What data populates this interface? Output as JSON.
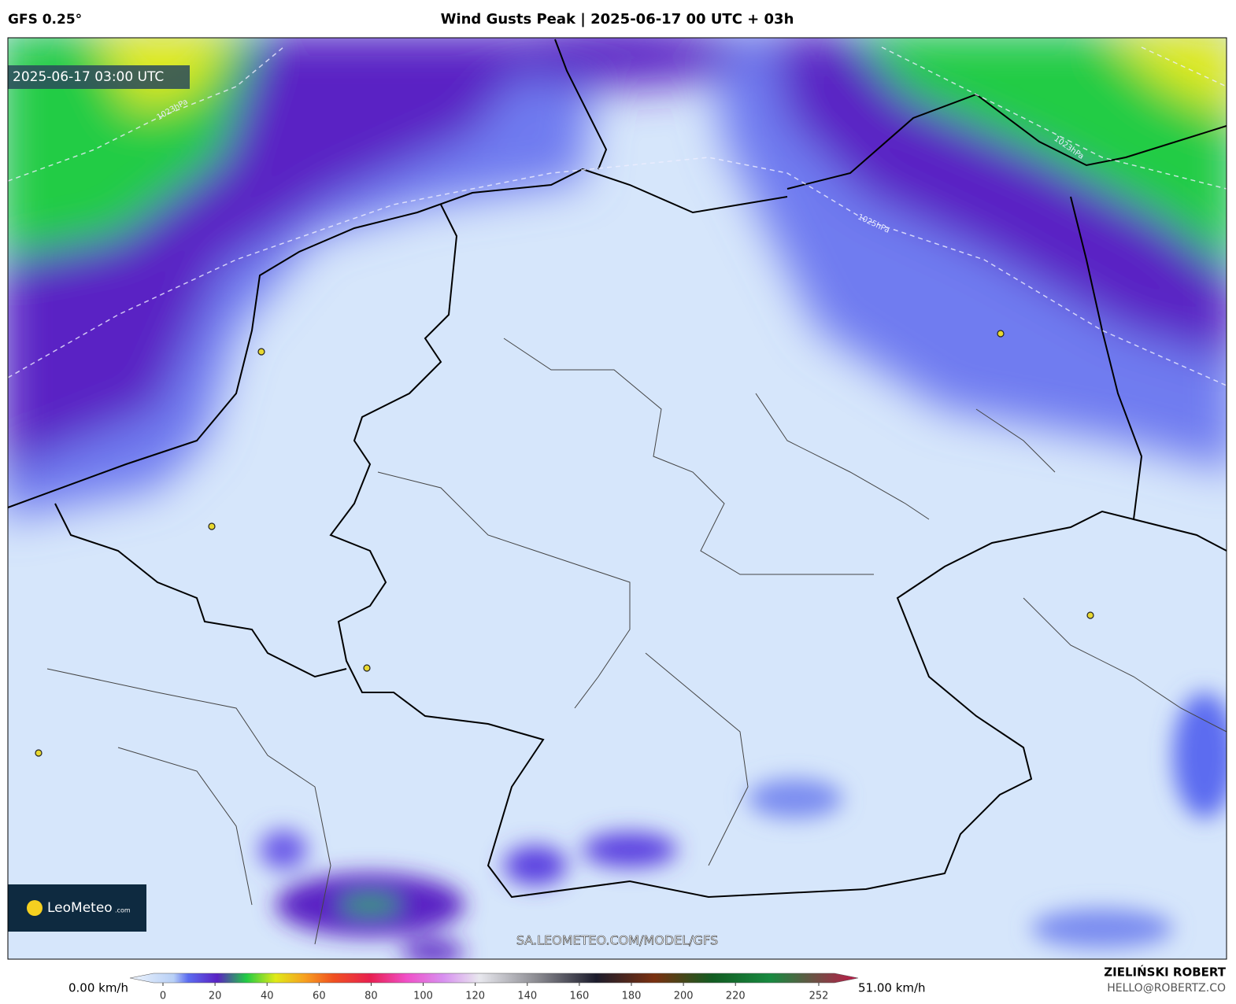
{
  "header": {
    "model": "GFS 0.25°",
    "title": "Wind Gusts Peak | 2025-06-17 00 UTC + 03h"
  },
  "map": {
    "valid_time": "2025-06-17 03:00 UTC",
    "isobars": [
      "1023hPa",
      "1025hPa",
      "1023hPa"
    ],
    "watermark": "SA.LEOMETEO.COM/MODEL/GFS",
    "logo": {
      "name": "LeoMeteo",
      "suffix": ".com"
    }
  },
  "colorbar": {
    "min_label": "0.00 km/h",
    "max_label": "51.00 km/h",
    "range": [
      0,
      252
    ],
    "ticks": [
      0,
      20,
      40,
      60,
      80,
      100,
      120,
      140,
      160,
      180,
      200,
      220,
      252
    ]
  },
  "footer": {
    "author": "ZIELIŃSKI ROBERT",
    "contact": "HELLO@ROBERTZ.CO"
  }
}
